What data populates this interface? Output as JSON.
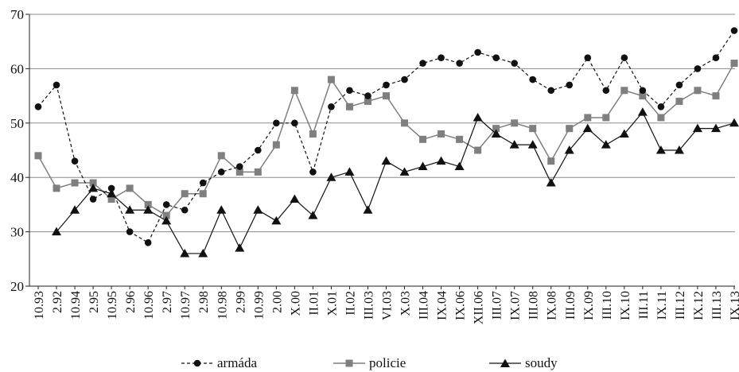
{
  "chart_data": {
    "type": "line",
    "categories": [
      "10.93",
      "2.92",
      "10.94",
      "2.95",
      "10.95",
      "2.96",
      "10.96",
      "2.97",
      "10.97",
      "2.98",
      "10.98",
      "2.99",
      "10.99",
      "2.00",
      "X.00",
      "II.01",
      "X.01",
      "II.02",
      "III.03",
      "VI.03",
      "X.03",
      "III.04",
      "IX.04",
      "IX.06",
      "XII.06",
      "III.07",
      "IX.07",
      "III.08",
      "IX.08",
      "III.09",
      "IX.09",
      "III.10",
      "IX.10",
      "III.11",
      "IX.11",
      "III.12",
      "IX.12",
      "III.13",
      "IX.13"
    ],
    "series": [
      {
        "name": "armáda",
        "style": "dashed",
        "marker": "circle",
        "color": "#111111",
        "values": [
          53,
          57,
          43,
          36,
          38,
          30,
          28,
          35,
          34,
          39,
          41,
          42,
          45,
          50,
          50,
          41,
          53,
          56,
          55,
          57,
          58,
          61,
          62,
          61,
          63,
          62,
          61,
          58,
          56,
          57,
          62,
          56,
          62,
          56,
          53,
          57,
          60,
          62,
          67
        ]
      },
      {
        "name": "policie",
        "style": "solid",
        "marker": "square",
        "color": "#7f7f7f",
        "values": [
          44,
          38,
          39,
          39,
          36,
          38,
          35,
          33,
          37,
          37,
          44,
          41,
          41,
          46,
          56,
          48,
          58,
          53,
          54,
          55,
          50,
          47,
          48,
          47,
          45,
          49,
          50,
          49,
          43,
          49,
          51,
          51,
          56,
          55,
          51,
          54,
          56,
          55,
          61
        ]
      },
      {
        "name": "soudy",
        "style": "solid",
        "marker": "triangle",
        "color": "#111111",
        "values": [
          null,
          30,
          34,
          38,
          37,
          34,
          34,
          32,
          26,
          26,
          34,
          27,
          34,
          32,
          36,
          33,
          40,
          41,
          34,
          43,
          41,
          42,
          43,
          42,
          51,
          48,
          46,
          46,
          39,
          45,
          49,
          46,
          48,
          52,
          45,
          45,
          49,
          49,
          50
        ]
      }
    ],
    "ylim": [
      20,
      70
    ],
    "yticks": [
      20,
      30,
      40,
      50,
      60,
      70
    ],
    "grid": true,
    "legend_position": "bottom"
  }
}
